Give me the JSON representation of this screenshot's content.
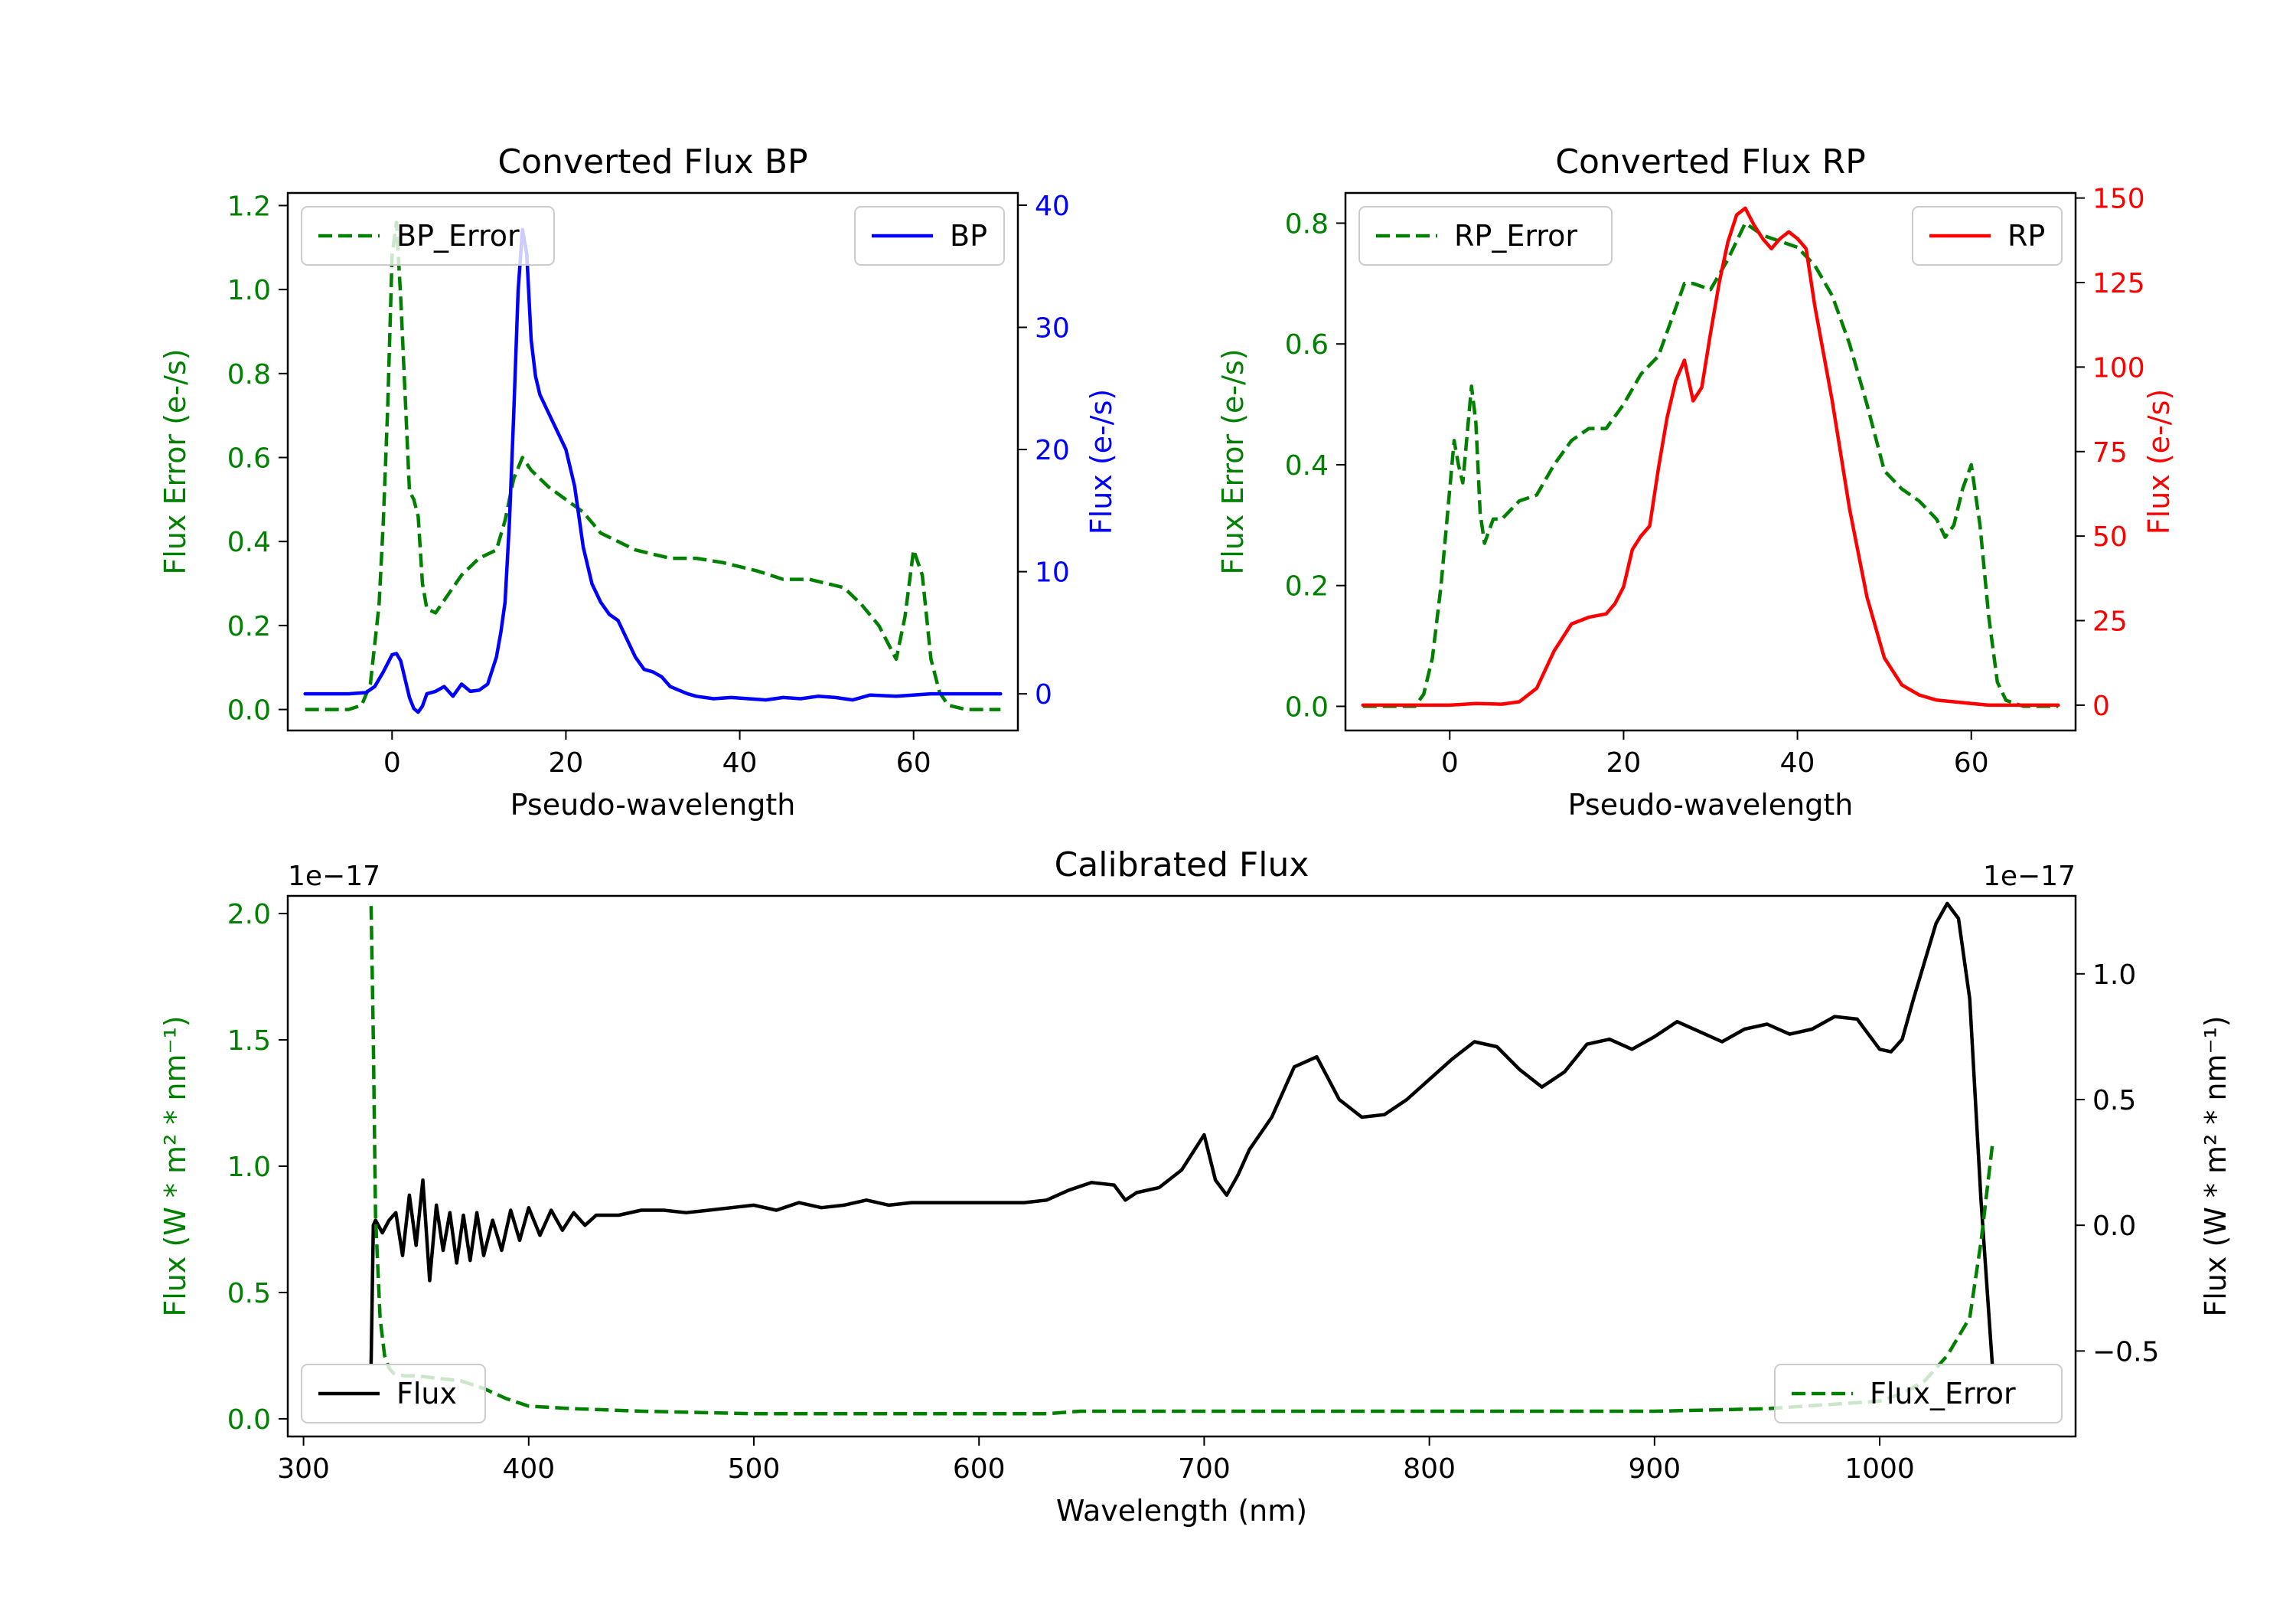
{
  "colors": {
    "green": "#008000",
    "blue": "#0000ff",
    "red": "#ff0000",
    "black": "#000000"
  },
  "chart_data": [
    {
      "id": "bp",
      "type": "line",
      "title": "Converted Flux BP",
      "xlabel": "Pseudo-wavelength",
      "xlim": [
        -12,
        72
      ],
      "xticks": [
        0,
        20,
        40,
        60
      ],
      "left_axis": {
        "label": "Flux Error (e-/s)",
        "color": "#008000",
        "ylim": [
          -0.05,
          1.23
        ],
        "ticks": [
          0.0,
          0.2,
          0.4,
          0.6,
          0.8,
          1.0,
          1.2
        ],
        "tick_labels": [
          "0.0",
          "0.2",
          "0.4",
          "0.6",
          "0.8",
          "1.0",
          "1.2"
        ]
      },
      "right_axis": {
        "label": "Flux (e-/s)",
        "color": "#0000ff",
        "ylim": [
          -3,
          41
        ],
        "ticks": [
          0,
          10,
          20,
          30,
          40
        ],
        "tick_labels": [
          "0",
          "10",
          "20",
          "30",
          "40"
        ]
      },
      "series": [
        {
          "name": "BP_Error",
          "axis": "left",
          "style": "dashed",
          "color": "#008000",
          "x": [
            -10,
            -5,
            -3.5,
            -2.5,
            -1.5,
            -1,
            -0.5,
            0,
            0.5,
            1,
            1.5,
            2,
            2.5,
            3,
            3.5,
            4,
            5,
            6,
            8,
            10,
            12,
            13,
            14,
            15,
            16,
            18,
            20,
            22,
            24,
            26,
            28,
            30,
            32,
            35,
            38,
            40,
            42,
            45,
            48,
            50,
            52,
            54,
            56,
            57,
            58,
            59,
            60,
            61,
            62,
            63,
            64,
            66,
            68,
            70
          ],
          "values": [
            0.0,
            0.0,
            0.01,
            0.06,
            0.25,
            0.45,
            0.72,
            1.08,
            1.16,
            0.98,
            0.75,
            0.52,
            0.5,
            0.46,
            0.3,
            0.24,
            0.23,
            0.26,
            0.32,
            0.36,
            0.38,
            0.45,
            0.55,
            0.6,
            0.57,
            0.53,
            0.5,
            0.47,
            0.42,
            0.4,
            0.38,
            0.37,
            0.36,
            0.36,
            0.35,
            0.34,
            0.33,
            0.31,
            0.31,
            0.3,
            0.29,
            0.25,
            0.2,
            0.16,
            0.12,
            0.22,
            0.38,
            0.32,
            0.12,
            0.04,
            0.01,
            0.0,
            0.0,
            0.0
          ]
        },
        {
          "name": "BP",
          "axis": "right",
          "style": "solid",
          "color": "#0000ff",
          "x": [
            -10,
            -5,
            -3,
            -2,
            -1,
            0,
            0.5,
            1,
            1.5,
            2,
            2.5,
            3,
            3.5,
            4,
            5,
            6,
            7,
            8,
            9,
            10,
            11,
            12,
            12.5,
            13,
            13.5,
            14,
            14.5,
            15,
            15.5,
            16,
            16.5,
            17,
            18,
            19,
            20,
            21,
            22,
            23,
            24,
            25,
            26,
            27,
            28,
            29,
            30,
            31,
            32,
            33,
            34,
            35,
            37,
            39,
            41,
            43,
            45,
            47,
            49,
            51,
            53,
            55,
            58,
            62,
            66,
            70
          ],
          "values": [
            0,
            0,
            0.1,
            0.6,
            1.8,
            3.2,
            3.3,
            2.7,
            1.2,
            -0.3,
            -1.2,
            -1.5,
            -1.0,
            0,
            0.2,
            0.6,
            -0.2,
            0.8,
            0.2,
            0.3,
            0.8,
            3,
            5,
            7.5,
            14,
            23,
            33,
            38,
            36,
            29,
            26,
            24.5,
            23,
            21.5,
            20,
            17,
            12,
            9,
            7.5,
            6.5,
            6,
            4.5,
            3,
            2.0,
            1.8,
            1.4,
            0.6,
            0.3,
            0,
            -0.2,
            -0.4,
            -0.3,
            -0.4,
            -0.5,
            -0.3,
            -0.4,
            -0.2,
            -0.3,
            -0.5,
            -0.1,
            -0.2,
            0,
            0,
            0
          ]
        }
      ]
    },
    {
      "id": "rp",
      "type": "line",
      "title": "Converted Flux RP",
      "xlabel": "Pseudo-wavelength",
      "xlim": [
        -12,
        72
      ],
      "xticks": [
        0,
        20,
        40,
        60
      ],
      "left_axis": {
        "label": "Flux Error (e-/s)",
        "color": "#008000",
        "ylim": [
          -0.04,
          0.85
        ],
        "ticks": [
          0.0,
          0.2,
          0.4,
          0.6,
          0.8
        ],
        "tick_labels": [
          "0.0",
          "0.2",
          "0.4",
          "0.6",
          "0.8"
        ]
      },
      "right_axis": {
        "label": "Flux (e-/s)",
        "color": "#ff0000",
        "ylim": [
          -7.5,
          151.5
        ],
        "ticks": [
          0,
          25,
          50,
          75,
          100,
          125,
          150
        ],
        "tick_labels": [
          "0",
          "25",
          "50",
          "75",
          "100",
          "125",
          "150"
        ]
      },
      "series": [
        {
          "name": "RP_Error",
          "axis": "left",
          "style": "dashed",
          "color": "#008000",
          "x": [
            -10,
            -5,
            -4,
            -3,
            -2,
            -1,
            0,
            0.5,
            1,
            1.5,
            2,
            2.5,
            3,
            3.5,
            4,
            5,
            6,
            8,
            10,
            12,
            14,
            16,
            18,
            20,
            22,
            24,
            26,
            27,
            28,
            30,
            32,
            34,
            35,
            36,
            38,
            40,
            42,
            44,
            46,
            48,
            50,
            52,
            54,
            56,
            57,
            58,
            59,
            60,
            61,
            62,
            63,
            64,
            66,
            68,
            70
          ],
          "values": [
            0.0,
            0.0,
            0.0,
            0.02,
            0.08,
            0.2,
            0.36,
            0.44,
            0.4,
            0.37,
            0.45,
            0.53,
            0.47,
            0.32,
            0.27,
            0.31,
            0.31,
            0.34,
            0.35,
            0.4,
            0.44,
            0.46,
            0.46,
            0.5,
            0.55,
            0.58,
            0.66,
            0.7,
            0.7,
            0.69,
            0.74,
            0.8,
            0.79,
            0.78,
            0.77,
            0.76,
            0.73,
            0.68,
            0.6,
            0.5,
            0.39,
            0.36,
            0.34,
            0.31,
            0.28,
            0.3,
            0.36,
            0.4,
            0.3,
            0.15,
            0.04,
            0.01,
            0.0,
            0.0,
            0.0
          ]
        },
        {
          "name": "RP",
          "axis": "right",
          "style": "solid",
          "color": "#ff0000",
          "x": [
            -10,
            -5,
            0,
            3,
            6,
            8,
            10,
            12,
            14,
            16,
            18,
            19,
            20,
            21,
            22,
            23,
            24,
            25,
            26,
            27,
            28,
            29,
            30,
            31,
            32,
            33,
            34,
            35,
            36,
            37,
            38,
            39,
            40,
            41,
            42,
            44,
            46,
            48,
            50,
            52,
            54,
            56,
            58,
            60,
            62,
            65,
            70
          ],
          "values": [
            0,
            0,
            0,
            0.5,
            0.3,
            1,
            5,
            16,
            24,
            26,
            27,
            30,
            35,
            46,
            50,
            53,
            70,
            85,
            96,
            102,
            90,
            94,
            110,
            125,
            137,
            145,
            147,
            142,
            138,
            135,
            138,
            140,
            138,
            135,
            118,
            90,
            58,
            32,
            14,
            6,
            3,
            1.5,
            1,
            0.5,
            0,
            0,
            0
          ]
        }
      ]
    },
    {
      "id": "calibrated",
      "type": "line",
      "title": "Calibrated Flux",
      "xlabel": "Wavelength (nm)",
      "xlim": [
        293,
        1087
      ],
      "xticks": [
        300,
        400,
        500,
        600,
        700,
        800,
        900,
        1000
      ],
      "left_axis": {
        "label": "Flux (W * m² * nm⁻¹)",
        "color": "#008000",
        "offset_text": "1e−17",
        "ylim": [
          -0.07,
          2.07
        ],
        "ticks": [
          0.0,
          0.5,
          1.0,
          1.5,
          2.0
        ],
        "tick_labels": [
          "0.0",
          "0.5",
          "1.0",
          "1.5",
          "2.0"
        ]
      },
      "right_axis": {
        "label": "Flux (W * m² * nm⁻¹)",
        "color": "#000000",
        "offset_text": "1e−17",
        "ylim": [
          -0.84,
          1.31
        ],
        "ticks": [
          -0.5,
          0.0,
          0.5,
          1.0
        ],
        "tick_labels": [
          "−0.5",
          "0.0",
          "0.5",
          "1.0"
        ]
      },
      "series": [
        {
          "name": "Flux",
          "axis": "right",
          "style": "solid",
          "color": "#000000",
          "x": [
            330,
            331,
            332,
            335,
            338,
            341,
            344,
            347,
            350,
            353,
            356,
            359,
            362,
            365,
            368,
            371,
            374,
            377,
            380,
            384,
            388,
            392,
            396,
            400,
            405,
            410,
            415,
            420,
            425,
            430,
            440,
            450,
            460,
            470,
            480,
            490,
            500,
            510,
            520,
            530,
            540,
            550,
            560,
            570,
            580,
            600,
            620,
            630,
            640,
            650,
            660,
            665,
            670,
            680,
            690,
            700,
            705,
            710,
            715,
            720,
            730,
            740,
            750,
            760,
            770,
            780,
            790,
            800,
            810,
            820,
            830,
            840,
            850,
            860,
            870,
            880,
            890,
            900,
            910,
            920,
            930,
            940,
            950,
            960,
            970,
            980,
            990,
            1000,
            1005,
            1010,
            1015,
            1020,
            1025,
            1030,
            1035,
            1040,
            1045,
            1050
          ],
          "values": [
            -0.55,
            0.0,
            0.02,
            -0.03,
            0.02,
            0.05,
            -0.12,
            0.12,
            -0.08,
            0.18,
            -0.22,
            0.08,
            -0.1,
            0.05,
            -0.15,
            0.04,
            -0.14,
            0.05,
            -0.12,
            0.02,
            -0.1,
            0.06,
            -0.06,
            0.07,
            -0.04,
            0.06,
            -0.02,
            0.05,
            0.0,
            0.04,
            0.04,
            0.06,
            0.06,
            0.05,
            0.06,
            0.07,
            0.08,
            0.06,
            0.09,
            0.07,
            0.08,
            0.1,
            0.08,
            0.09,
            0.09,
            0.09,
            0.09,
            0.1,
            0.14,
            0.17,
            0.16,
            0.1,
            0.13,
            0.15,
            0.22,
            0.36,
            0.18,
            0.12,
            0.2,
            0.3,
            0.43,
            0.63,
            0.67,
            0.5,
            0.43,
            0.44,
            0.5,
            0.58,
            0.66,
            0.73,
            0.71,
            0.62,
            0.55,
            0.61,
            0.72,
            0.74,
            0.7,
            0.75,
            0.81,
            0.77,
            0.73,
            0.78,
            0.8,
            0.76,
            0.78,
            0.83,
            0.82,
            0.7,
            0.69,
            0.74,
            0.9,
            1.05,
            1.2,
            1.28,
            1.22,
            0.9,
            0.1,
            -0.55
          ]
        },
        {
          "name": "Flux_Error",
          "axis": "left",
          "style": "dashed",
          "color": "#008000",
          "x": [
            330,
            331,
            332,
            334,
            336,
            338,
            340,
            345,
            350,
            360,
            370,
            380,
            390,
            400,
            420,
            450,
            500,
            550,
            600,
            630,
            645,
            660,
            700,
            800,
            900,
            950,
            1000,
            1010,
            1020,
            1030,
            1040,
            1045,
            1050
          ],
          "values": [
            2.03,
            1.5,
            0.8,
            0.4,
            0.25,
            0.2,
            0.18,
            0.17,
            0.17,
            0.16,
            0.15,
            0.12,
            0.08,
            0.05,
            0.04,
            0.03,
            0.02,
            0.02,
            0.02,
            0.02,
            0.03,
            0.03,
            0.03,
            0.03,
            0.03,
            0.04,
            0.07,
            0.1,
            0.15,
            0.25,
            0.4,
            0.7,
            1.08
          ]
        }
      ]
    }
  ]
}
